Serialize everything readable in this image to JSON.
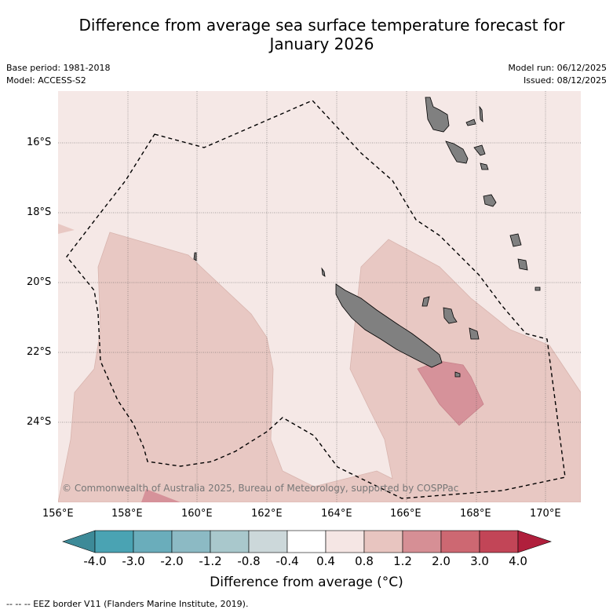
{
  "title_line1": "Difference from average sea surface temperature forecast for",
  "title_line2": "January 2026",
  "base_period": "Base period: 1981-2018",
  "model": "Model: ACCESS-S2",
  "model_run": "Model run: 06/12/2025",
  "issued": "Issued: 08/12/2025",
  "copyright": "© Commonwealth of Australia 2025, Bureau of Meteorology, supported by COSPPac",
  "lat_ticks": [
    "16°S",
    "18°S",
    "20°S",
    "22°S",
    "24°S"
  ],
  "lon_ticks": [
    "156°E",
    "158°E",
    "160°E",
    "162°E",
    "164°E",
    "166°E",
    "168°E",
    "170°E"
  ],
  "colorbar": {
    "label": "Difference from average (°C)",
    "ticks": [
      "-4.0",
      "-3.0",
      "-2.0",
      "-1.2",
      "-0.8",
      "-0.4",
      "0.4",
      "0.8",
      "1.2",
      "2.0",
      "3.0",
      "4.0"
    ],
    "colors": [
      "#4aa3b3",
      "#6aadbb",
      "#8cbac4",
      "#a9c8cc",
      "#ccd8da",
      "#ffffff",
      "#f5e6e4",
      "#e8c5c0",
      "#d68f95",
      "#cd6872",
      "#c24557"
    ],
    "under_color": "#3d8a98",
    "over_color": "#b01f3c"
  },
  "legend": "-- -- -- EEZ border V11 (Flanders Marine Institute, 2019)."
}
